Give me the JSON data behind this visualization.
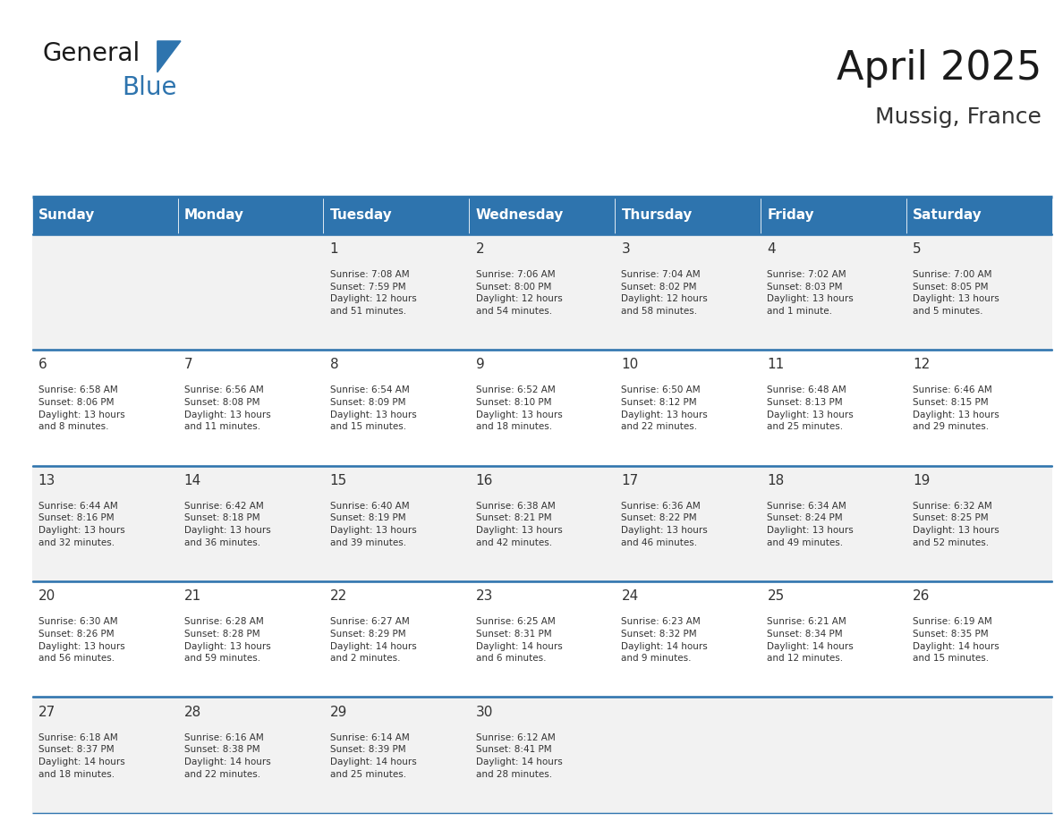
{
  "title": "April 2025",
  "subtitle": "Mussig, France",
  "days_of_week": [
    "Sunday",
    "Monday",
    "Tuesday",
    "Wednesday",
    "Thursday",
    "Friday",
    "Saturday"
  ],
  "header_bg": "#2E74AE",
  "header_text_color": "#FFFFFF",
  "cell_bg_odd": "#F2F2F2",
  "cell_bg_even": "#FFFFFF",
  "cell_text_color": "#333333",
  "day_num_color": "#333333",
  "separator_color": "#2E74AE",
  "weeks": [
    [
      {
        "day": "",
        "info": ""
      },
      {
        "day": "",
        "info": ""
      },
      {
        "day": "1",
        "info": "Sunrise: 7:08 AM\nSunset: 7:59 PM\nDaylight: 12 hours\nand 51 minutes."
      },
      {
        "day": "2",
        "info": "Sunrise: 7:06 AM\nSunset: 8:00 PM\nDaylight: 12 hours\nand 54 minutes."
      },
      {
        "day": "3",
        "info": "Sunrise: 7:04 AM\nSunset: 8:02 PM\nDaylight: 12 hours\nand 58 minutes."
      },
      {
        "day": "4",
        "info": "Sunrise: 7:02 AM\nSunset: 8:03 PM\nDaylight: 13 hours\nand 1 minute."
      },
      {
        "day": "5",
        "info": "Sunrise: 7:00 AM\nSunset: 8:05 PM\nDaylight: 13 hours\nand 5 minutes."
      }
    ],
    [
      {
        "day": "6",
        "info": "Sunrise: 6:58 AM\nSunset: 8:06 PM\nDaylight: 13 hours\nand 8 minutes."
      },
      {
        "day": "7",
        "info": "Sunrise: 6:56 AM\nSunset: 8:08 PM\nDaylight: 13 hours\nand 11 minutes."
      },
      {
        "day": "8",
        "info": "Sunrise: 6:54 AM\nSunset: 8:09 PM\nDaylight: 13 hours\nand 15 minutes."
      },
      {
        "day": "9",
        "info": "Sunrise: 6:52 AM\nSunset: 8:10 PM\nDaylight: 13 hours\nand 18 minutes."
      },
      {
        "day": "10",
        "info": "Sunrise: 6:50 AM\nSunset: 8:12 PM\nDaylight: 13 hours\nand 22 minutes."
      },
      {
        "day": "11",
        "info": "Sunrise: 6:48 AM\nSunset: 8:13 PM\nDaylight: 13 hours\nand 25 minutes."
      },
      {
        "day": "12",
        "info": "Sunrise: 6:46 AM\nSunset: 8:15 PM\nDaylight: 13 hours\nand 29 minutes."
      }
    ],
    [
      {
        "day": "13",
        "info": "Sunrise: 6:44 AM\nSunset: 8:16 PM\nDaylight: 13 hours\nand 32 minutes."
      },
      {
        "day": "14",
        "info": "Sunrise: 6:42 AM\nSunset: 8:18 PM\nDaylight: 13 hours\nand 36 minutes."
      },
      {
        "day": "15",
        "info": "Sunrise: 6:40 AM\nSunset: 8:19 PM\nDaylight: 13 hours\nand 39 minutes."
      },
      {
        "day": "16",
        "info": "Sunrise: 6:38 AM\nSunset: 8:21 PM\nDaylight: 13 hours\nand 42 minutes."
      },
      {
        "day": "17",
        "info": "Sunrise: 6:36 AM\nSunset: 8:22 PM\nDaylight: 13 hours\nand 46 minutes."
      },
      {
        "day": "18",
        "info": "Sunrise: 6:34 AM\nSunset: 8:24 PM\nDaylight: 13 hours\nand 49 minutes."
      },
      {
        "day": "19",
        "info": "Sunrise: 6:32 AM\nSunset: 8:25 PM\nDaylight: 13 hours\nand 52 minutes."
      }
    ],
    [
      {
        "day": "20",
        "info": "Sunrise: 6:30 AM\nSunset: 8:26 PM\nDaylight: 13 hours\nand 56 minutes."
      },
      {
        "day": "21",
        "info": "Sunrise: 6:28 AM\nSunset: 8:28 PM\nDaylight: 13 hours\nand 59 minutes."
      },
      {
        "day": "22",
        "info": "Sunrise: 6:27 AM\nSunset: 8:29 PM\nDaylight: 14 hours\nand 2 minutes."
      },
      {
        "day": "23",
        "info": "Sunrise: 6:25 AM\nSunset: 8:31 PM\nDaylight: 14 hours\nand 6 minutes."
      },
      {
        "day": "24",
        "info": "Sunrise: 6:23 AM\nSunset: 8:32 PM\nDaylight: 14 hours\nand 9 minutes."
      },
      {
        "day": "25",
        "info": "Sunrise: 6:21 AM\nSunset: 8:34 PM\nDaylight: 14 hours\nand 12 minutes."
      },
      {
        "day": "26",
        "info": "Sunrise: 6:19 AM\nSunset: 8:35 PM\nDaylight: 14 hours\nand 15 minutes."
      }
    ],
    [
      {
        "day": "27",
        "info": "Sunrise: 6:18 AM\nSunset: 8:37 PM\nDaylight: 14 hours\nand 18 minutes."
      },
      {
        "day": "28",
        "info": "Sunrise: 6:16 AM\nSunset: 8:38 PM\nDaylight: 14 hours\nand 22 minutes."
      },
      {
        "day": "29",
        "info": "Sunrise: 6:14 AM\nSunset: 8:39 PM\nDaylight: 14 hours\nand 25 minutes."
      },
      {
        "day": "30",
        "info": "Sunrise: 6:12 AM\nSunset: 8:41 PM\nDaylight: 14 hours\nand 28 minutes."
      },
      {
        "day": "",
        "info": ""
      },
      {
        "day": "",
        "info": ""
      },
      {
        "day": "",
        "info": ""
      }
    ]
  ]
}
